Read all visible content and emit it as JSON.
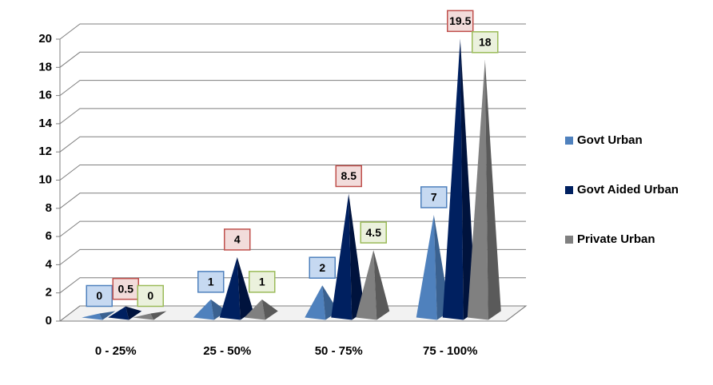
{
  "chart_data": {
    "type": "bar",
    "style": "3d-pyramid",
    "categories": [
      "0 - 25%",
      "25 - 50%",
      "50 - 75%",
      "75 - 100%"
    ],
    "series": [
      {
        "name": "Govt Urban",
        "color": "#4f81bd",
        "values": [
          0,
          1,
          2,
          7
        ]
      },
      {
        "name": "Govt Aided Urban",
        "color": "#002060",
        "values": [
          0.5,
          4,
          8.5,
          19.5
        ]
      },
      {
        "name": "Private Urban",
        "color": "#808080",
        "values": [
          0,
          1,
          4.5,
          18
        ]
      }
    ],
    "ylim": [
      0,
      20
    ],
    "yticks": [
      0,
      2,
      4,
      6,
      8,
      10,
      12,
      14,
      16,
      18,
      20
    ],
    "grid": true,
    "legend": "right"
  }
}
